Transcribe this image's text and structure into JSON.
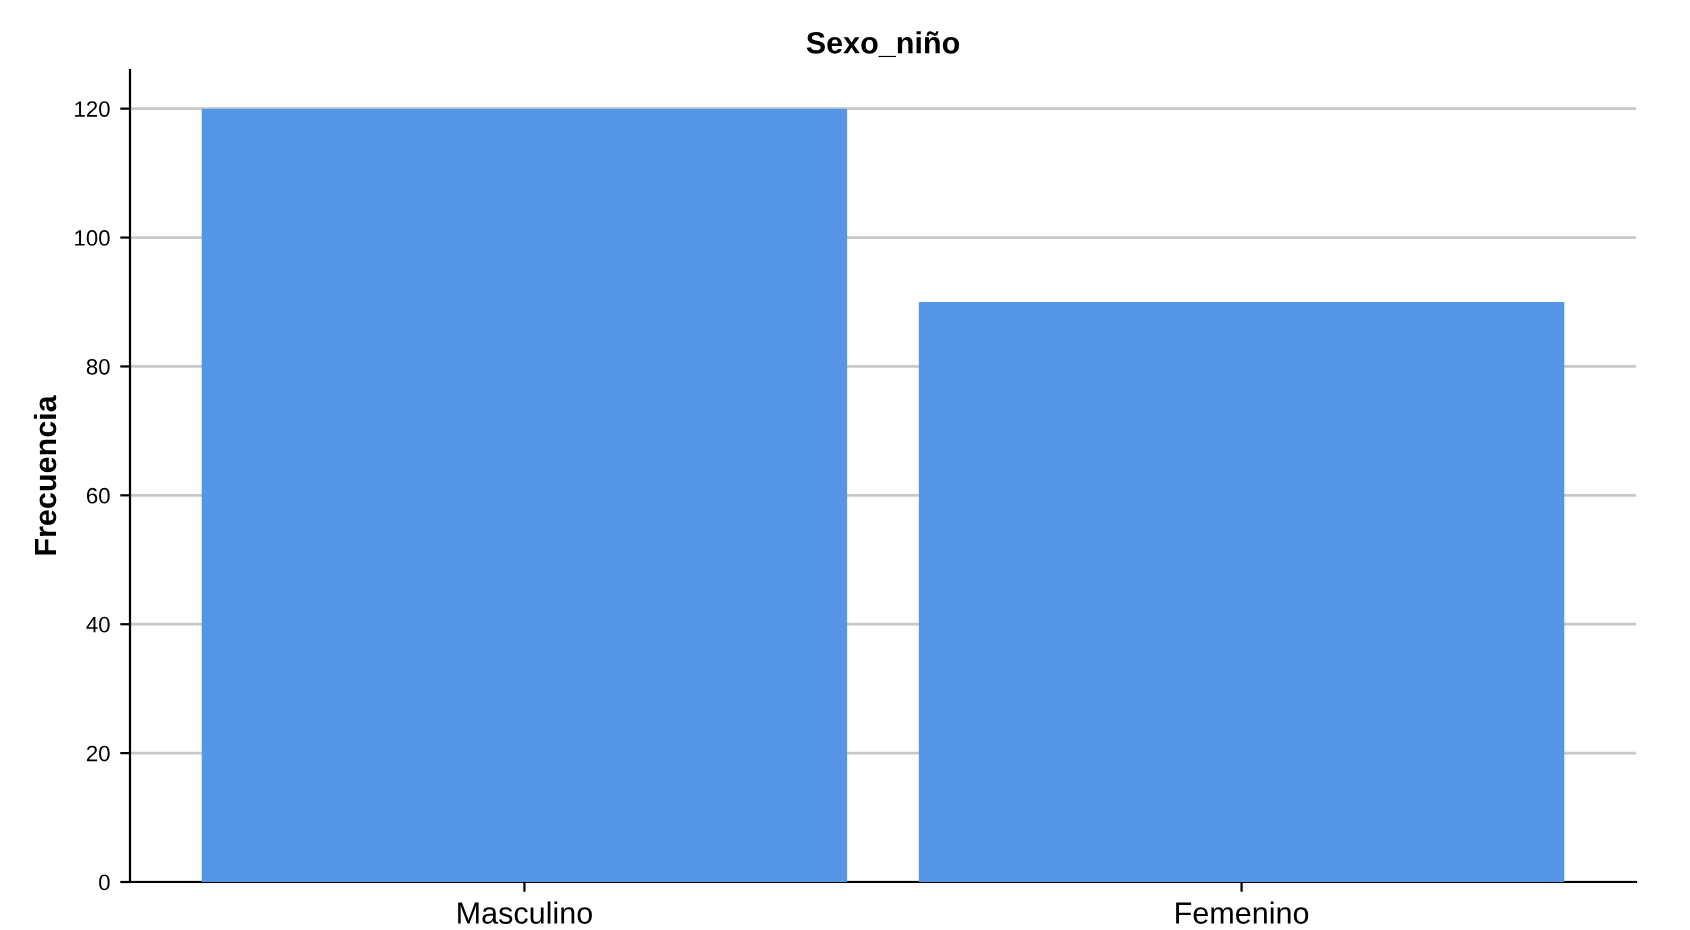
{
  "chart_data": {
    "type": "bar",
    "title": "Sexo_niño",
    "ylabel": "Frecuencia",
    "categories": [
      "Masculino",
      "Femenino"
    ],
    "values": [
      120,
      90
    ],
    "color": "#5596e6",
    "ylim": [
      0,
      126
    ],
    "yticks": [
      0,
      20,
      40,
      60,
      80,
      100,
      120
    ],
    "grid": "y"
  }
}
